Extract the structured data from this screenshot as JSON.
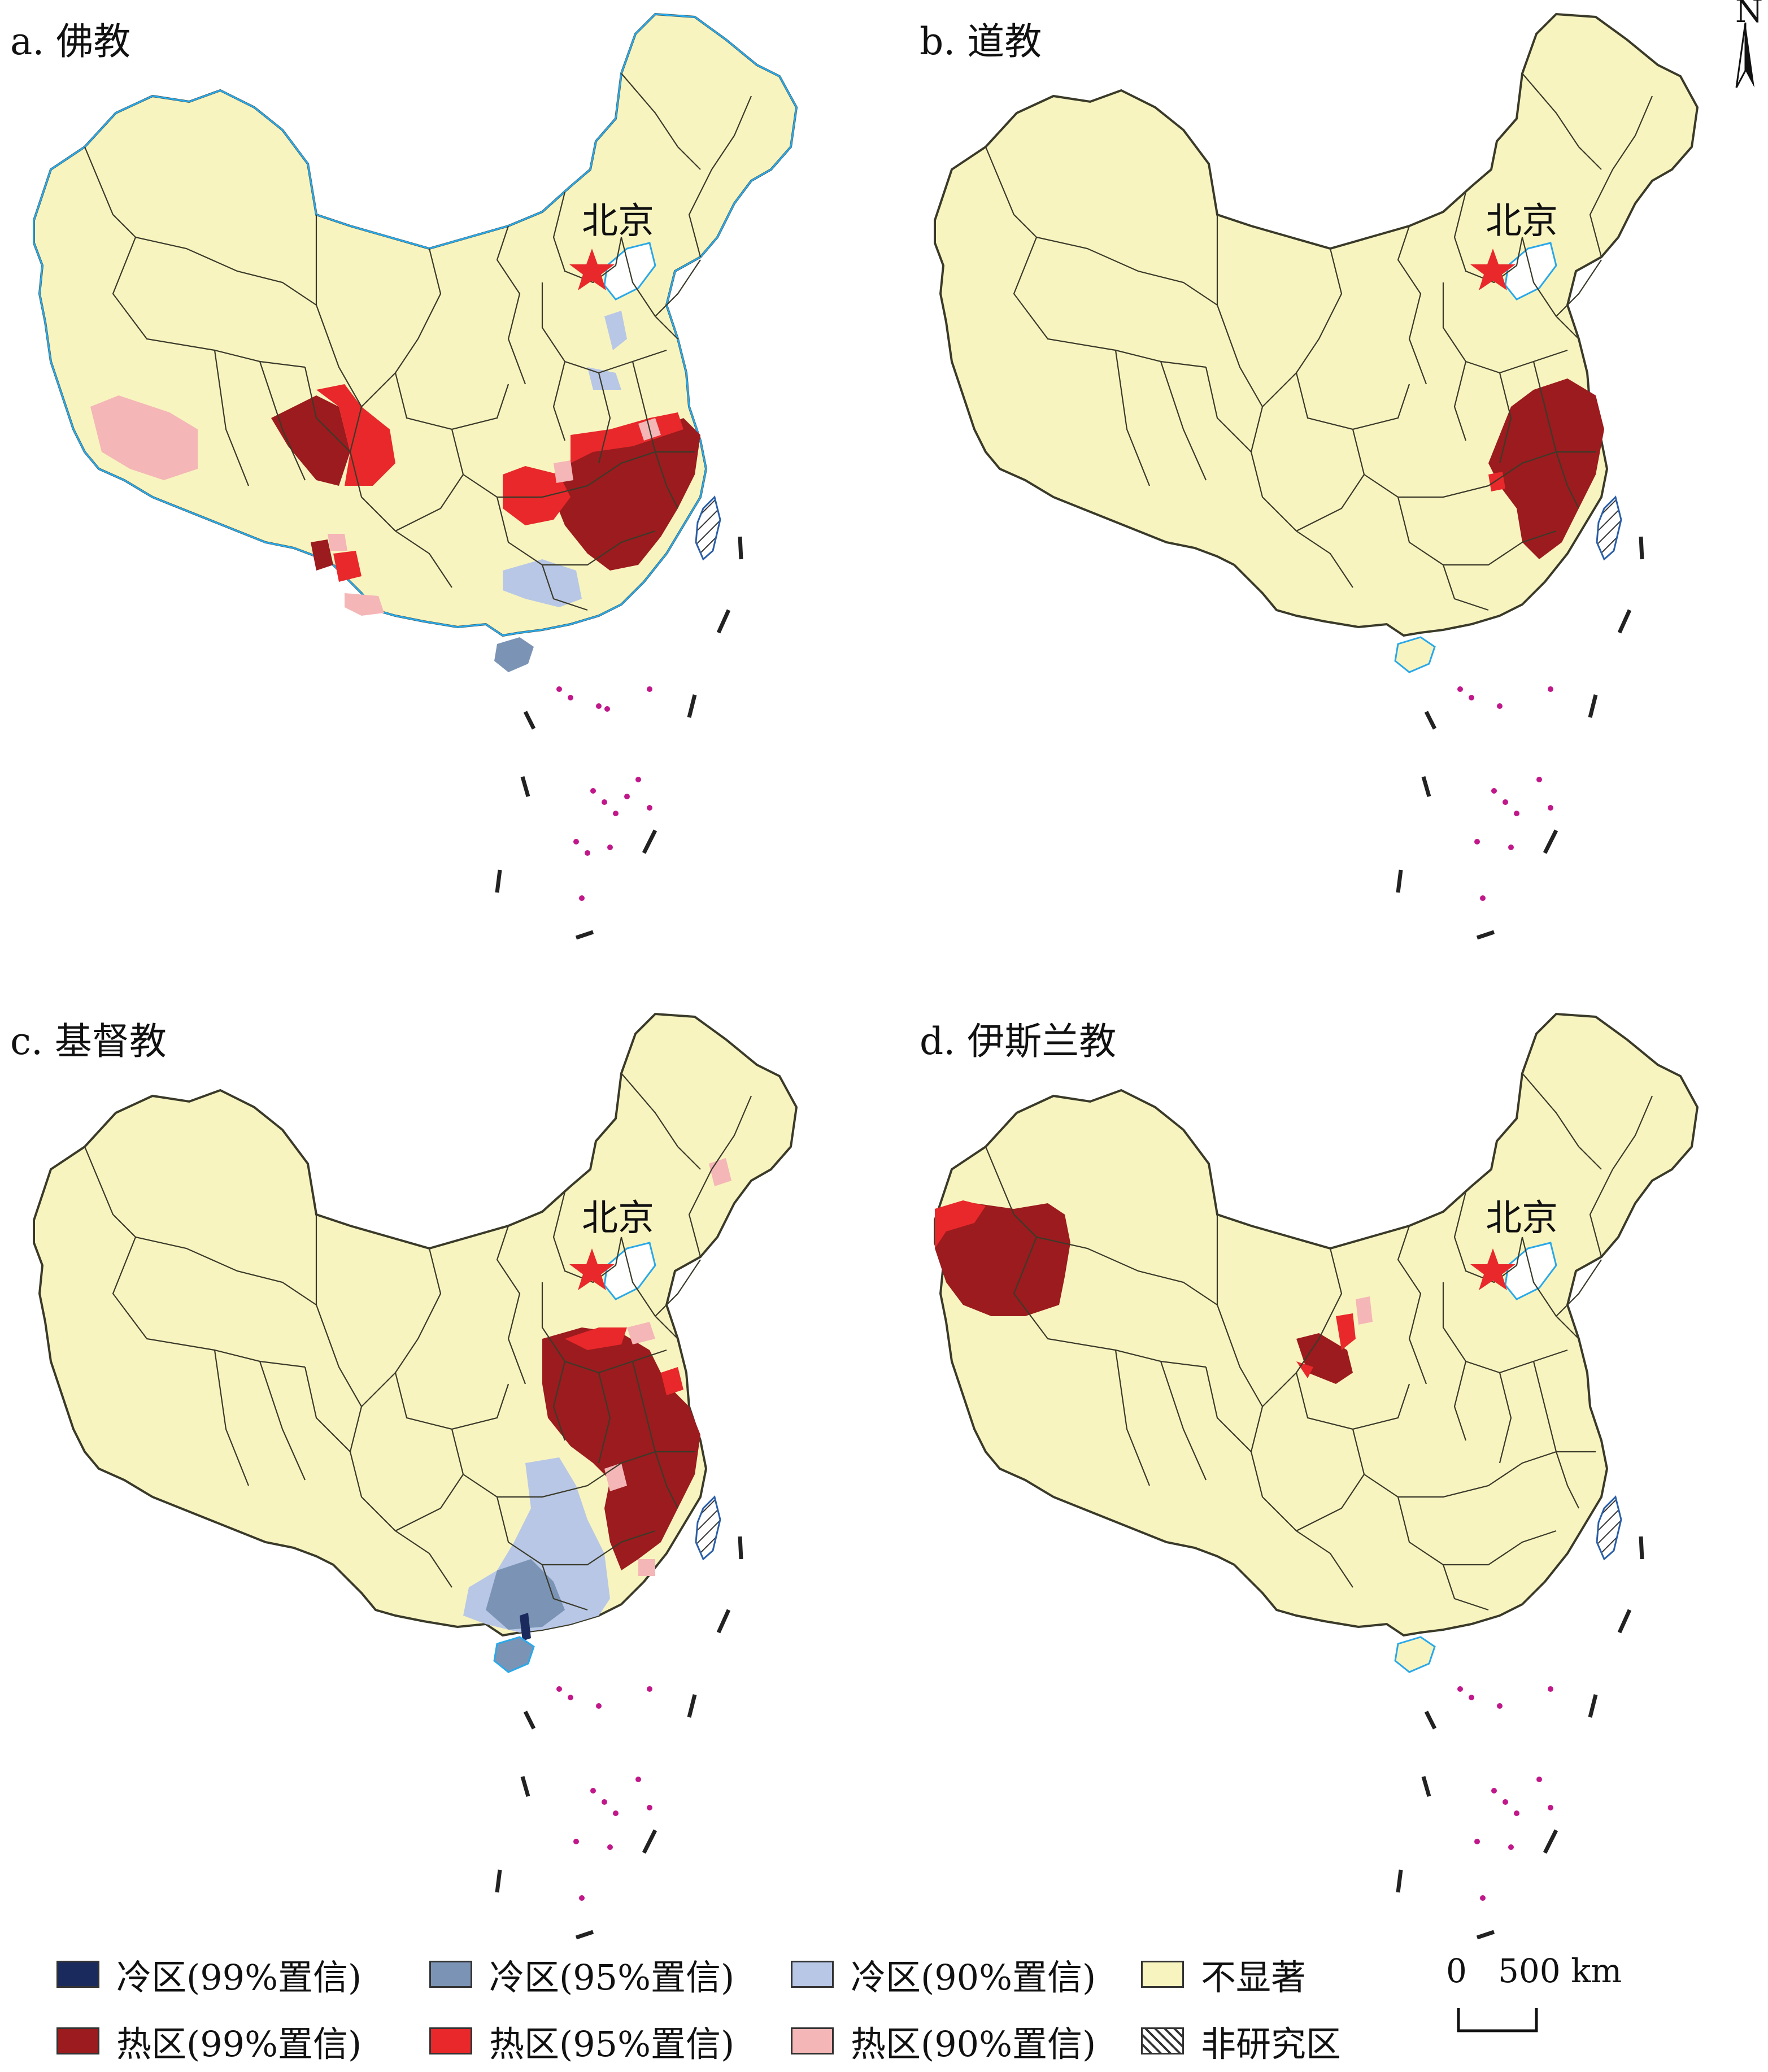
{
  "panels": [
    {
      "id": "a",
      "title": "a. 佛教",
      "capital": "北京"
    },
    {
      "id": "b",
      "title": "b. 道教",
      "capital": "北京"
    },
    {
      "id": "c",
      "title": "c. 基督教",
      "capital": "北京"
    },
    {
      "id": "d",
      "title": "d. 伊斯兰教",
      "capital": "北京"
    }
  ],
  "north_arrow": {
    "label": "N",
    "icon": "north-arrow-icon"
  },
  "legend": {
    "items": [
      {
        "label": "冷区(99%置信)",
        "color": "#1b2a5c"
      },
      {
        "label": "冷区(95%置信)",
        "color": "#7b94b5"
      },
      {
        "label": "冷区(90%置信)",
        "color": "#b8c7e6"
      },
      {
        "label": "不显著",
        "color": "#f8f4c0"
      },
      {
        "label": "热区(99%置信)",
        "color": "#9b1b1e"
      },
      {
        "label": "热区(95%置信)",
        "color": "#e8282a"
      },
      {
        "label": "热区(90%置信)",
        "color": "#f4b6b6"
      },
      {
        "label": "非研究区",
        "color": "hatch"
      }
    ]
  },
  "scale_bar": {
    "zero": "0",
    "distance": "500 km"
  },
  "colors": {
    "land": "#f8f4c0",
    "border": "#3a3a2a",
    "coast": "#2aa8e8",
    "islands": "#c0188a",
    "capital_star": "#e8282a"
  }
}
